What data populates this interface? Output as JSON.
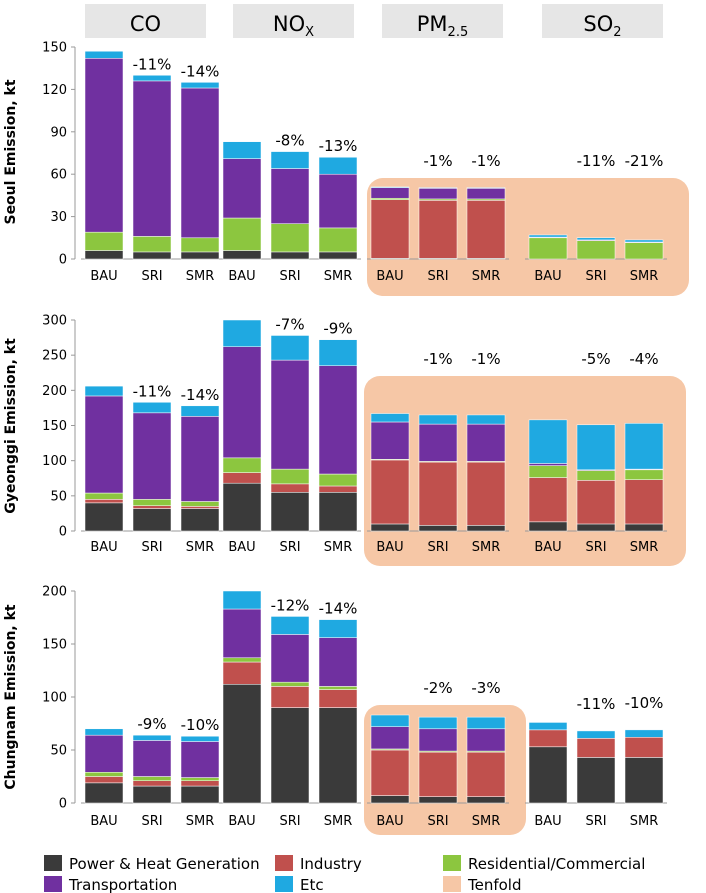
{
  "colors": {
    "power": "#3a3a3a",
    "industry": "#c0504d",
    "residential": "#8cc63f",
    "transportation": "#7030a0",
    "etc": "#1fa9e1",
    "tenfold": "#f6c7a6",
    "header_bg": "#e6e6e6",
    "axis": "#999999"
  },
  "chart_data": {
    "type": "bar",
    "stacked": true,
    "pollutants": [
      {
        "key": "CO",
        "label": "CO",
        "sub": ""
      },
      {
        "key": "NOX",
        "label": "NO",
        "sub": "X"
      },
      {
        "key": "PM25",
        "label": "PM",
        "sub": "2.5"
      },
      {
        "key": "SO2",
        "label": "SO",
        "sub": "2"
      }
    ],
    "categories": [
      "BAU",
      "SRI",
      "SMR"
    ],
    "series_order": [
      "power",
      "industry",
      "residential",
      "transportation",
      "etc"
    ],
    "legend": [
      {
        "key": "power",
        "label": "Power & Heat Generation"
      },
      {
        "key": "industry",
        "label": "Industry"
      },
      {
        "key": "residential",
        "label": "Residential/Commercial"
      },
      {
        "key": "transportation",
        "label": "Transportation"
      },
      {
        "key": "etc",
        "label": "Etc"
      },
      {
        "key": "tenfold",
        "label": "Tenfold"
      }
    ],
    "panels": [
      {
        "region": "Seoul",
        "ylabel": "Seoul Emission, kt",
        "ylim": [
          0,
          150
        ],
        "yticks": [
          0,
          30,
          60,
          90,
          120,
          150
        ],
        "groups": {
          "CO": {
            "tenfold": false,
            "changes": [
              "",
              "-11%",
              "-14%"
            ],
            "bars": [
              {
                "power": 6,
                "industry": 0,
                "residential": 13,
                "transportation": 123,
                "etc": 5
              },
              {
                "power": 5,
                "industry": 0,
                "residential": 11,
                "transportation": 110,
                "etc": 4
              },
              {
                "power": 5,
                "industry": 0,
                "residential": 10,
                "transportation": 106,
                "etc": 4
              }
            ]
          },
          "NOX": {
            "tenfold": false,
            "changes": [
              "",
              "-8%",
              "-13%"
            ],
            "bars": [
              {
                "power": 6,
                "industry": 0,
                "residential": 23,
                "transportation": 42,
                "etc": 12
              },
              {
                "power": 5,
                "industry": 0,
                "residential": 20,
                "transportation": 39,
                "etc": 12
              },
              {
                "power": 5,
                "industry": 0,
                "residential": 17,
                "transportation": 38,
                "etc": 12
              }
            ]
          },
          "PM25": {
            "tenfold": true,
            "changes": [
              "",
              "-1%",
              "-1%"
            ],
            "bars": [
              {
                "power": 0.5,
                "industry": 41.5,
                "residential": 1,
                "transportation": 7.5,
                "etc": 0.5
              },
              {
                "power": 0.5,
                "industry": 41,
                "residential": 1,
                "transportation": 7.5,
                "etc": 0.5
              },
              {
                "power": 0.5,
                "industry": 41,
                "residential": 1,
                "transportation": 7.5,
                "etc": 0.5
              }
            ]
          },
          "SO2": {
            "tenfold": false,
            "changes": [
              "",
              "-11%",
              "-21%"
            ],
            "bars": [
              {
                "power": 0,
                "industry": 0,
                "residential": 15,
                "transportation": 0.5,
                "etc": 1.5
              },
              {
                "power": 0,
                "industry": 0,
                "residential": 13,
                "transportation": 0.5,
                "etc": 1.5
              },
              {
                "power": 0,
                "industry": 0,
                "residential": 11.5,
                "transportation": 0.5,
                "etc": 1.5
              }
            ]
          }
        }
      },
      {
        "region": "Gyeonggi",
        "ylabel": "Gyeonggi Emission, kt",
        "ylim": [
          0,
          300
        ],
        "yticks": [
          0,
          50,
          100,
          150,
          200,
          250,
          300
        ],
        "groups": {
          "CO": {
            "tenfold": false,
            "changes": [
              "",
              "-11%",
              "-14%"
            ],
            "bars": [
              {
                "power": 40,
                "industry": 5,
                "residential": 9,
                "transportation": 138,
                "etc": 14
              },
              {
                "power": 32,
                "industry": 4,
                "residential": 9,
                "transportation": 123,
                "etc": 15
              },
              {
                "power": 32,
                "industry": 3,
                "residential": 7,
                "transportation": 121,
                "etc": 15
              }
            ]
          },
          "NOX": {
            "tenfold": false,
            "changes": [
              "",
              "-7%",
              "-9%"
            ],
            "bars": [
              {
                "power": 68,
                "industry": 15,
                "residential": 21,
                "transportation": 158,
                "etc": 38
              },
              {
                "power": 55,
                "industry": 12,
                "residential": 21,
                "transportation": 155,
                "etc": 35
              },
              {
                "power": 55,
                "industry": 9,
                "residential": 17,
                "transportation": 154,
                "etc": 37
              }
            ]
          },
          "PM25": {
            "tenfold": true,
            "changes": [
              "",
              "-1%",
              "-1%"
            ],
            "bars": [
              {
                "power": 10,
                "industry": 91,
                "residential": 1,
                "transportation": 53,
                "etc": 12
              },
              {
                "power": 8,
                "industry": 90,
                "residential": 1,
                "transportation": 53,
                "etc": 13
              },
              {
                "power": 8,
                "industry": 90,
                "residential": 1,
                "transportation": 53,
                "etc": 13
              }
            ]
          },
          "SO2": {
            "tenfold": false,
            "changes": [
              "",
              "-5%",
              "-4%"
            ],
            "bars": [
              {
                "power": 13,
                "industry": 63,
                "residential": 17,
                "transportation": 3,
                "etc": 62
              },
              {
                "power": 10,
                "industry": 62,
                "residential": 14,
                "transportation": 1,
                "etc": 64
              },
              {
                "power": 10,
                "industry": 63,
                "residential": 14,
                "transportation": 1,
                "etc": 65
              }
            ]
          }
        }
      },
      {
        "region": "Chungnam",
        "ylabel": "Chungnam Emission, kt",
        "ylim": [
          0,
          200
        ],
        "yticks": [
          0,
          50,
          100,
          150,
          200
        ],
        "groups": {
          "CO": {
            "tenfold": false,
            "changes": [
              "",
              "-9%",
              "-10%"
            ],
            "bars": [
              {
                "power": 19,
                "industry": 6,
                "residential": 4,
                "transportation": 35,
                "etc": 6
              },
              {
                "power": 16,
                "industry": 5,
                "residential": 4,
                "transportation": 34,
                "etc": 5
              },
              {
                "power": 16,
                "industry": 5,
                "residential": 3,
                "transportation": 34,
                "etc": 5
              }
            ]
          },
          "NOX": {
            "tenfold": false,
            "changes": [
              "",
              "-12%",
              "-14%"
            ],
            "bars": [
              {
                "power": 112,
                "industry": 21,
                "residential": 4,
                "transportation": 46,
                "etc": 17
              },
              {
                "power": 90,
                "industry": 20,
                "residential": 4,
                "transportation": 45,
                "etc": 17
              },
              {
                "power": 90,
                "industry": 17,
                "residential": 3,
                "transportation": 46,
                "etc": 17
              }
            ]
          },
          "PM25": {
            "tenfold": true,
            "changes": [
              "",
              "-2%",
              "-3%"
            ],
            "bars": [
              {
                "power": 7,
                "industry": 43,
                "residential": 1,
                "transportation": 21,
                "etc": 11
              },
              {
                "power": 6,
                "industry": 42,
                "residential": 1,
                "transportation": 21,
                "etc": 11
              },
              {
                "power": 6,
                "industry": 42,
                "residential": 1,
                "transportation": 21,
                "etc": 11
              }
            ]
          },
          "SO2": {
            "tenfold": false,
            "changes": [
              "",
              "-11%",
              "-10%"
            ],
            "bars": [
              {
                "power": 53,
                "industry": 16,
                "residential": 0,
                "transportation": 0,
                "etc": 7
              },
              {
                "power": 43,
                "industry": 18,
                "residential": 0,
                "transportation": 0,
                "etc": 7
              },
              {
                "power": 43,
                "industry": 19,
                "residential": 0,
                "transportation": 0,
                "etc": 7
              }
            ]
          }
        }
      }
    ]
  }
}
